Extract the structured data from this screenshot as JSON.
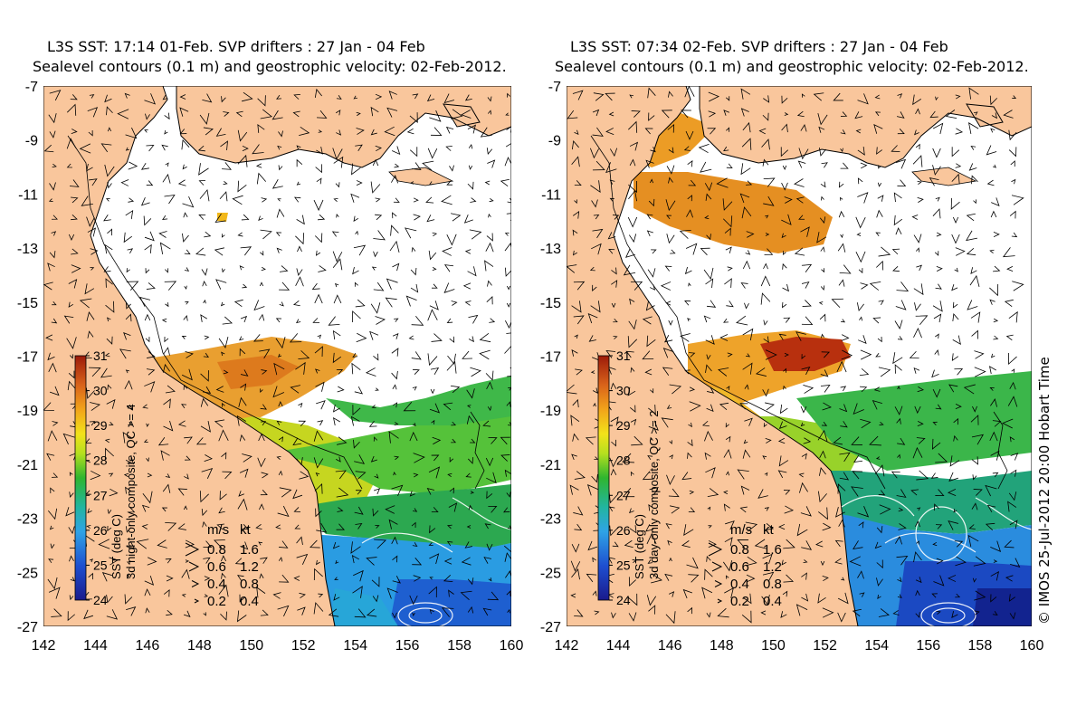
{
  "panels": [
    {
      "title_line1": "L3S SST: 17:14 01-Feb. SVP drifters : 27 Jan - 04 Feb",
      "title_line2": "Sealevel contours (0.1 m) and geostrophic velocity: 02-Feb-2012.",
      "colorbar_label_1": "SST (deg C)",
      "colorbar_label_2": "3d night-only composite, QC >= 4",
      "sst_coverage": "night"
    },
    {
      "title_line1": "L3S SST: 07:34 02-Feb. SVP drifters : 27 Jan - 04 Feb",
      "title_line2": "Sealevel contours (0.1 m) and geostrophic velocity: 02-Feb-2012.",
      "colorbar_label_1": "SST (deg C)",
      "colorbar_label_2": "3d day-only composite, QC >= 2",
      "sst_coverage": "day"
    }
  ],
  "axes": {
    "x_ticks": [
      "142",
      "144",
      "146",
      "148",
      "150",
      "152",
      "154",
      "156",
      "158",
      "160"
    ],
    "y_ticks": [
      "-7",
      "-9",
      "-11",
      "-13",
      "-15",
      "-17",
      "-19",
      "-21",
      "-23",
      "-25",
      "-27"
    ],
    "x_range": [
      142,
      160
    ],
    "y_range": [
      -27,
      -7
    ]
  },
  "colorbar": {
    "ticks": [
      "31",
      "30",
      "29",
      "28",
      "27",
      "26",
      "25",
      "24"
    ],
    "range": [
      24,
      31
    ]
  },
  "legend": {
    "header_ms": "m/s",
    "header_kt": "kt",
    "rows": [
      {
        "ms": "0.8",
        "kt": "1.6"
      },
      {
        "ms": "0.6",
        "kt": "1.2"
      },
      {
        "ms": "0.4",
        "kt": "0.8"
      },
      {
        "ms": "0.2",
        "kt": "0.4"
      }
    ]
  },
  "credit": "© IMOS 25-Jul-2012 20:00 Hobart Time",
  "colors": {
    "land": "#f9c69c",
    "sst_warm": "#e07a1a",
    "sst_hot": "#b8260a",
    "sst_mid": "#3cb43c",
    "sst_cool": "#2e9be6",
    "sst_cold": "#1a3aa8"
  }
}
